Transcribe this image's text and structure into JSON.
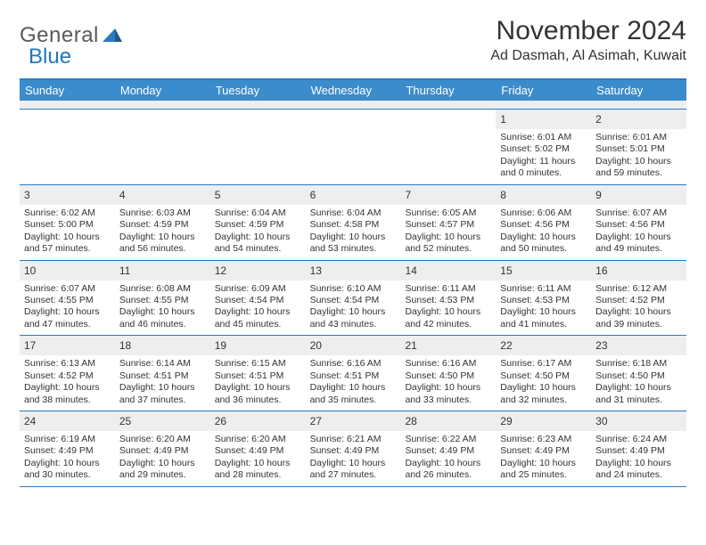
{
  "header": {
    "logo_gray": "General",
    "logo_blue": "Blue",
    "month_title": "November 2024",
    "location": "Ad Dasmah, Al Asimah, Kuwait"
  },
  "colors": {
    "header_bar": "#3b8ccc",
    "border": "#2b7bc0",
    "gray_bar": "#eeeeee",
    "logo_blue": "#2277bb",
    "text": "#333333"
  },
  "day_names": [
    "Sunday",
    "Monday",
    "Tuesday",
    "Wednesday",
    "Thursday",
    "Friday",
    "Saturday"
  ],
  "weeks": [
    [
      {
        "n": "",
        "sr": "",
        "ss": "",
        "dl": ""
      },
      {
        "n": "",
        "sr": "",
        "ss": "",
        "dl": ""
      },
      {
        "n": "",
        "sr": "",
        "ss": "",
        "dl": ""
      },
      {
        "n": "",
        "sr": "",
        "ss": "",
        "dl": ""
      },
      {
        "n": "",
        "sr": "",
        "ss": "",
        "dl": ""
      },
      {
        "n": "1",
        "sr": "Sunrise: 6:01 AM",
        "ss": "Sunset: 5:02 PM",
        "dl": "Daylight: 11 hours and 0 minutes."
      },
      {
        "n": "2",
        "sr": "Sunrise: 6:01 AM",
        "ss": "Sunset: 5:01 PM",
        "dl": "Daylight: 10 hours and 59 minutes."
      }
    ],
    [
      {
        "n": "3",
        "sr": "Sunrise: 6:02 AM",
        "ss": "Sunset: 5:00 PM",
        "dl": "Daylight: 10 hours and 57 minutes."
      },
      {
        "n": "4",
        "sr": "Sunrise: 6:03 AM",
        "ss": "Sunset: 4:59 PM",
        "dl": "Daylight: 10 hours and 56 minutes."
      },
      {
        "n": "5",
        "sr": "Sunrise: 6:04 AM",
        "ss": "Sunset: 4:59 PM",
        "dl": "Daylight: 10 hours and 54 minutes."
      },
      {
        "n": "6",
        "sr": "Sunrise: 6:04 AM",
        "ss": "Sunset: 4:58 PM",
        "dl": "Daylight: 10 hours and 53 minutes."
      },
      {
        "n": "7",
        "sr": "Sunrise: 6:05 AM",
        "ss": "Sunset: 4:57 PM",
        "dl": "Daylight: 10 hours and 52 minutes."
      },
      {
        "n": "8",
        "sr": "Sunrise: 6:06 AM",
        "ss": "Sunset: 4:56 PM",
        "dl": "Daylight: 10 hours and 50 minutes."
      },
      {
        "n": "9",
        "sr": "Sunrise: 6:07 AM",
        "ss": "Sunset: 4:56 PM",
        "dl": "Daylight: 10 hours and 49 minutes."
      }
    ],
    [
      {
        "n": "10",
        "sr": "Sunrise: 6:07 AM",
        "ss": "Sunset: 4:55 PM",
        "dl": "Daylight: 10 hours and 47 minutes."
      },
      {
        "n": "11",
        "sr": "Sunrise: 6:08 AM",
        "ss": "Sunset: 4:55 PM",
        "dl": "Daylight: 10 hours and 46 minutes."
      },
      {
        "n": "12",
        "sr": "Sunrise: 6:09 AM",
        "ss": "Sunset: 4:54 PM",
        "dl": "Daylight: 10 hours and 45 minutes."
      },
      {
        "n": "13",
        "sr": "Sunrise: 6:10 AM",
        "ss": "Sunset: 4:54 PM",
        "dl": "Daylight: 10 hours and 43 minutes."
      },
      {
        "n": "14",
        "sr": "Sunrise: 6:11 AM",
        "ss": "Sunset: 4:53 PM",
        "dl": "Daylight: 10 hours and 42 minutes."
      },
      {
        "n": "15",
        "sr": "Sunrise: 6:11 AM",
        "ss": "Sunset: 4:53 PM",
        "dl": "Daylight: 10 hours and 41 minutes."
      },
      {
        "n": "16",
        "sr": "Sunrise: 6:12 AM",
        "ss": "Sunset: 4:52 PM",
        "dl": "Daylight: 10 hours and 39 minutes."
      }
    ],
    [
      {
        "n": "17",
        "sr": "Sunrise: 6:13 AM",
        "ss": "Sunset: 4:52 PM",
        "dl": "Daylight: 10 hours and 38 minutes."
      },
      {
        "n": "18",
        "sr": "Sunrise: 6:14 AM",
        "ss": "Sunset: 4:51 PM",
        "dl": "Daylight: 10 hours and 37 minutes."
      },
      {
        "n": "19",
        "sr": "Sunrise: 6:15 AM",
        "ss": "Sunset: 4:51 PM",
        "dl": "Daylight: 10 hours and 36 minutes."
      },
      {
        "n": "20",
        "sr": "Sunrise: 6:16 AM",
        "ss": "Sunset: 4:51 PM",
        "dl": "Daylight: 10 hours and 35 minutes."
      },
      {
        "n": "21",
        "sr": "Sunrise: 6:16 AM",
        "ss": "Sunset: 4:50 PM",
        "dl": "Daylight: 10 hours and 33 minutes."
      },
      {
        "n": "22",
        "sr": "Sunrise: 6:17 AM",
        "ss": "Sunset: 4:50 PM",
        "dl": "Daylight: 10 hours and 32 minutes."
      },
      {
        "n": "23",
        "sr": "Sunrise: 6:18 AM",
        "ss": "Sunset: 4:50 PM",
        "dl": "Daylight: 10 hours and 31 minutes."
      }
    ],
    [
      {
        "n": "24",
        "sr": "Sunrise: 6:19 AM",
        "ss": "Sunset: 4:49 PM",
        "dl": "Daylight: 10 hours and 30 minutes."
      },
      {
        "n": "25",
        "sr": "Sunrise: 6:20 AM",
        "ss": "Sunset: 4:49 PM",
        "dl": "Daylight: 10 hours and 29 minutes."
      },
      {
        "n": "26",
        "sr": "Sunrise: 6:20 AM",
        "ss": "Sunset: 4:49 PM",
        "dl": "Daylight: 10 hours and 28 minutes."
      },
      {
        "n": "27",
        "sr": "Sunrise: 6:21 AM",
        "ss": "Sunset: 4:49 PM",
        "dl": "Daylight: 10 hours and 27 minutes."
      },
      {
        "n": "28",
        "sr": "Sunrise: 6:22 AM",
        "ss": "Sunset: 4:49 PM",
        "dl": "Daylight: 10 hours and 26 minutes."
      },
      {
        "n": "29",
        "sr": "Sunrise: 6:23 AM",
        "ss": "Sunset: 4:49 PM",
        "dl": "Daylight: 10 hours and 25 minutes."
      },
      {
        "n": "30",
        "sr": "Sunrise: 6:24 AM",
        "ss": "Sunset: 4:49 PM",
        "dl": "Daylight: 10 hours and 24 minutes."
      }
    ]
  ]
}
